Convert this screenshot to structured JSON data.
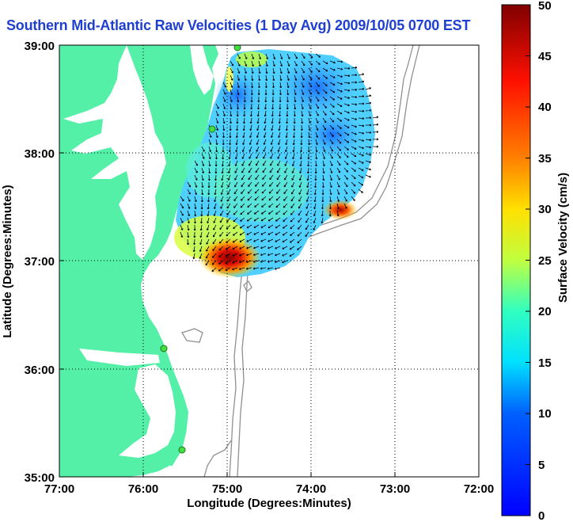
{
  "title": "Southern Mid-Atlantic Raw Velocities (1 Day Avg) 2009/10/05 0700 EST",
  "chart_data": {
    "type": "heatmap",
    "title": "Southern Mid-Atlantic Raw Velocities (1 Day Avg) 2009/10/05 0700 EST",
    "xlabel": "Longitude (Degrees:Minutes)",
    "ylabel": "Latitude (Degrees:Minutes)",
    "x_ticks": [
      "77:00",
      "76:00",
      "75:00",
      "74:00",
      "73:00",
      "72:00"
    ],
    "y_ticks": [
      "35:00",
      "36:00",
      "37:00",
      "38:00",
      "39:00"
    ],
    "xlim": [
      -77,
      -72
    ],
    "ylim": [
      35,
      39
    ],
    "grid": "dotted",
    "colorbar": {
      "label": "Surface Velocity (cm/s)",
      "range": [
        0,
        50
      ],
      "ticks": [
        0,
        5,
        10,
        15,
        20,
        25,
        30,
        35,
        40,
        45,
        50
      ]
    },
    "velocity_hotspots": [
      {
        "lon": -75.1,
        "lat": 37.05,
        "speed_cm_s": 48
      },
      {
        "lon": -73.65,
        "lat": 37.45,
        "speed_cm_s": 46
      },
      {
        "lon": -75.5,
        "lat": 37.2,
        "speed_cm_s": 28
      },
      {
        "lon": -74.9,
        "lat": 38.6,
        "speed_cm_s": 8
      },
      {
        "lon": -74.0,
        "lat": 38.8,
        "speed_cm_s": 5
      }
    ]
  }
}
